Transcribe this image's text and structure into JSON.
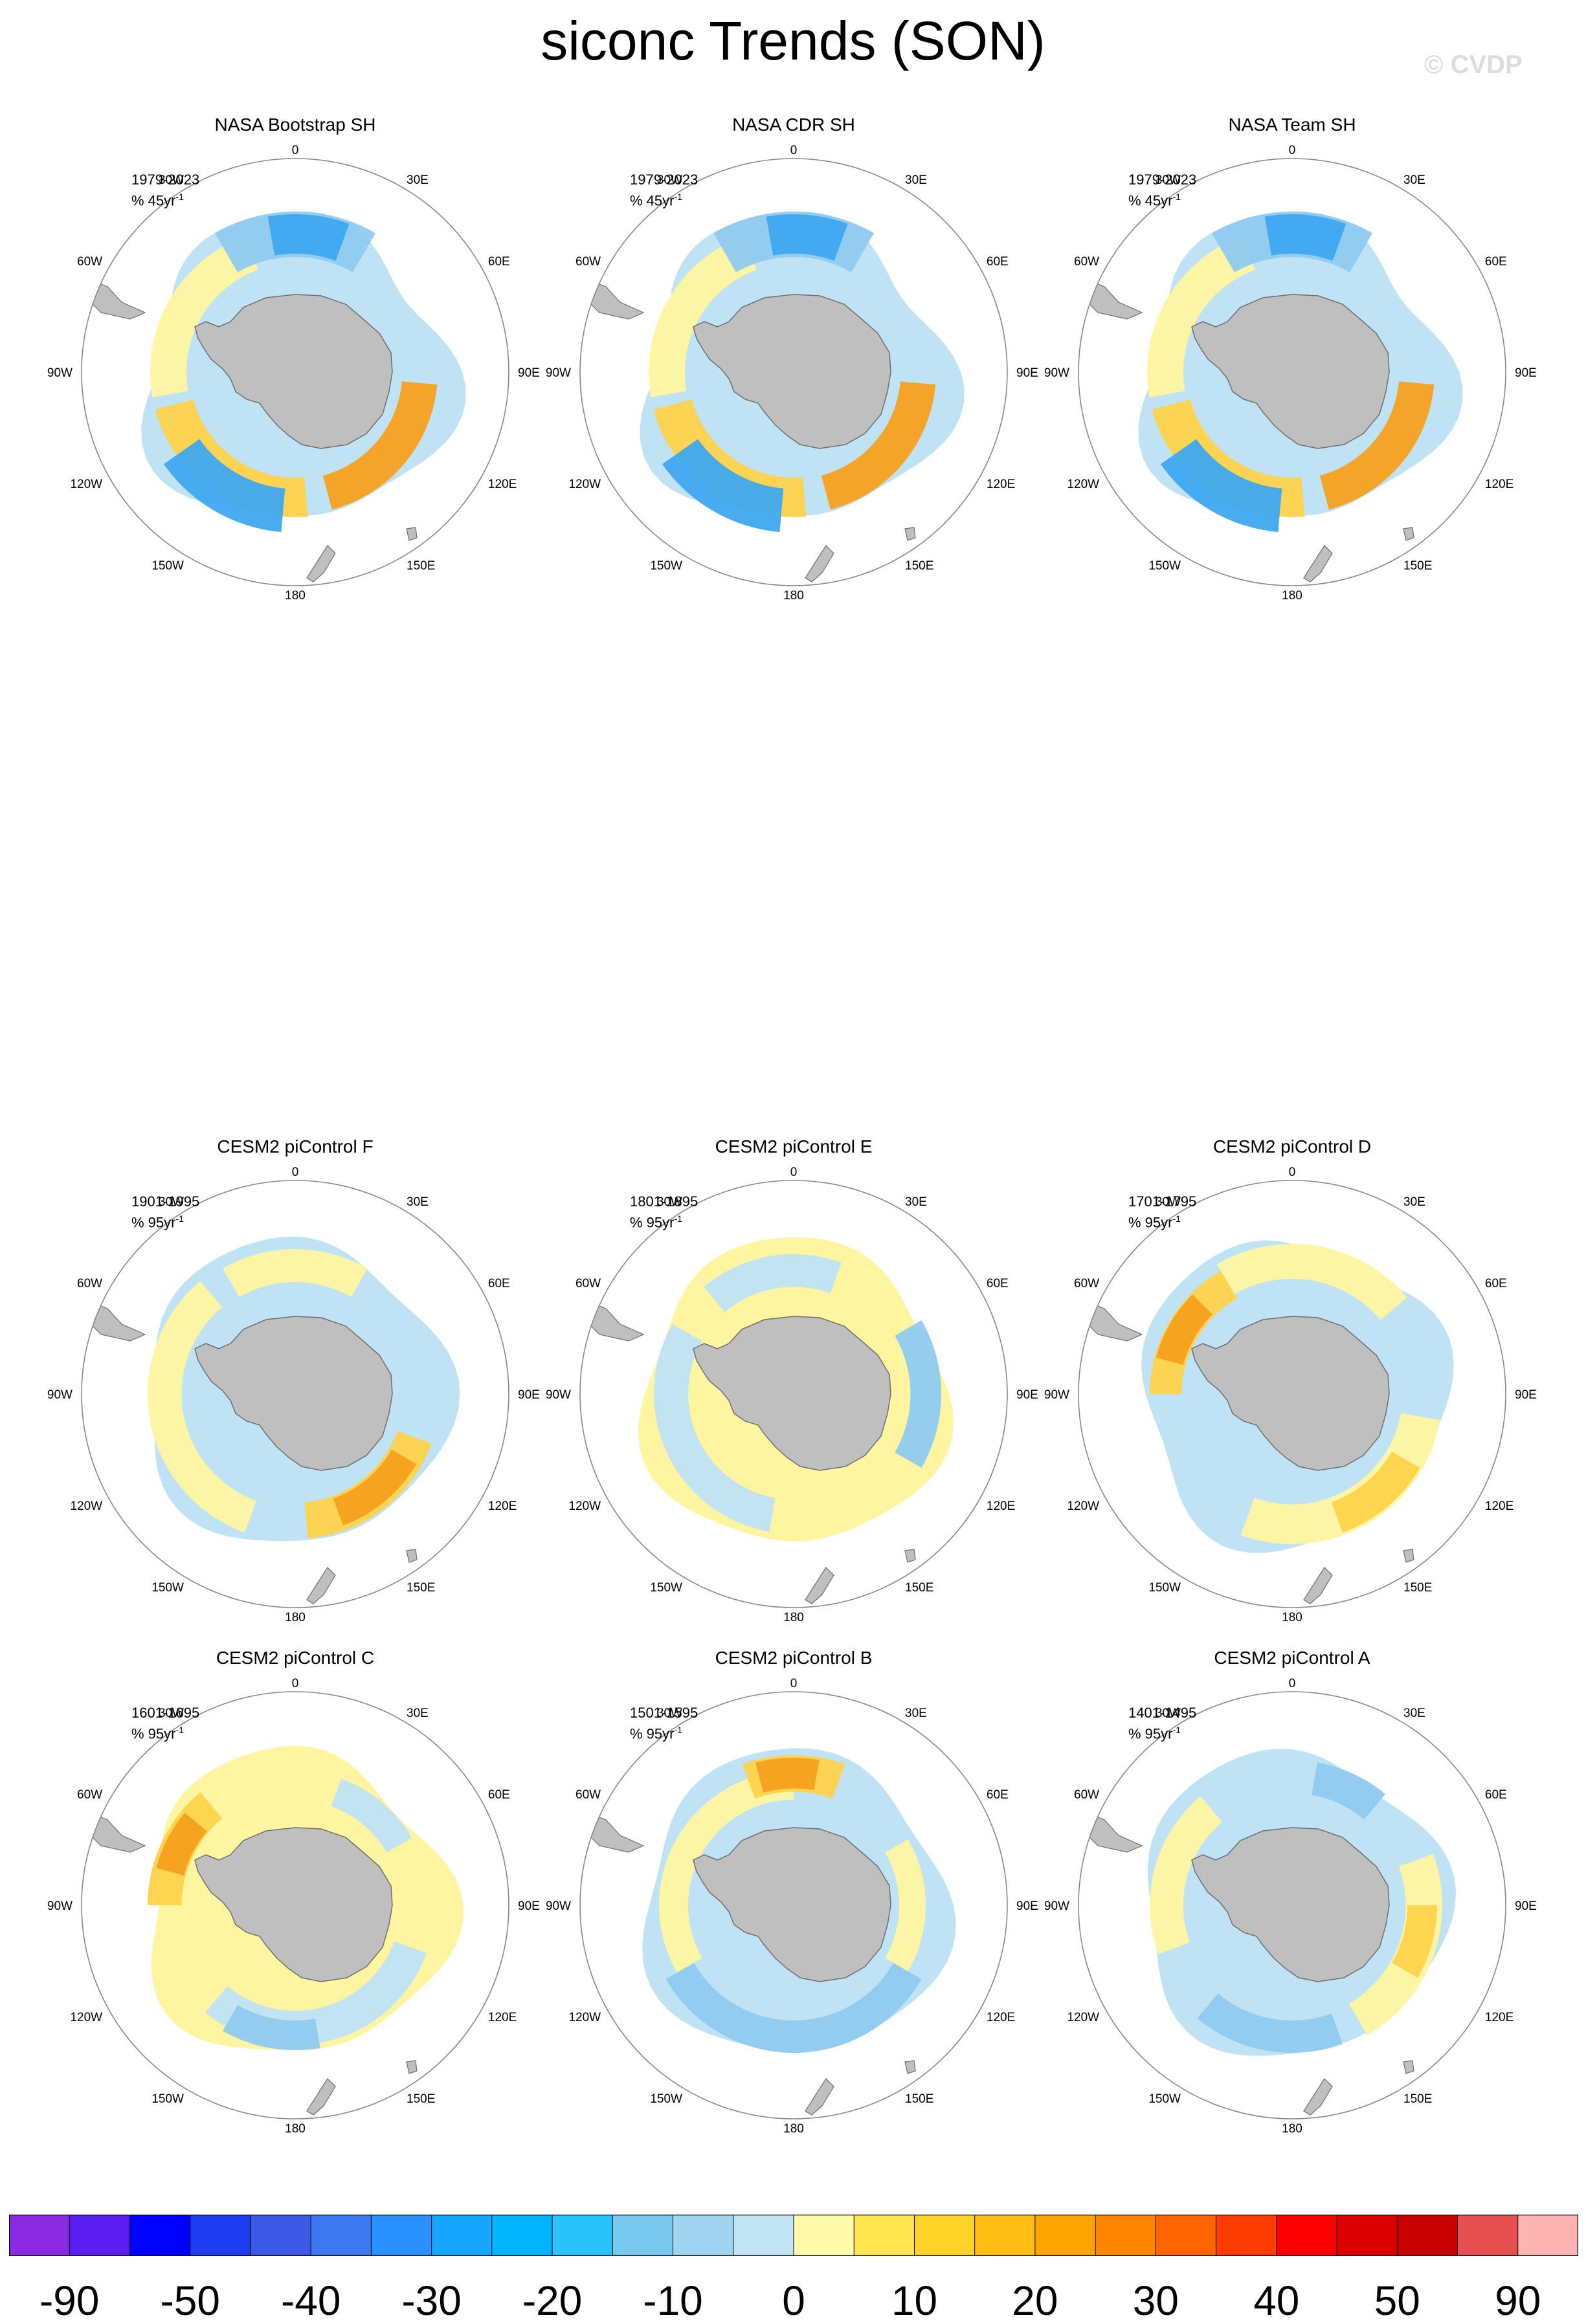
{
  "title": "siconc Trends (SON)",
  "watermark": "© CVDP",
  "longitude_labels": {
    "lon_0": "0",
    "lon_30e": "30E",
    "lon_60e": "60E",
    "lon_90e": "90E",
    "lon_120e": "120E",
    "lon_150e": "150E",
    "lon_180": "180",
    "lon_150w": "150W",
    "lon_120w": "120W",
    "lon_90w": "90W",
    "lon_60w": "60W",
    "lon_30w": "30W"
  },
  "panels": [
    {
      "title": "NASA Bootstrap SH",
      "period": "1979-2023",
      "units_base": "% 45yr",
      "units_exp": "-1",
      "pattern": "obs"
    },
    {
      "title": "NASA CDR SH",
      "period": "1979-2023",
      "units_base": "% 45yr",
      "units_exp": "-1",
      "pattern": "obs"
    },
    {
      "title": "NASA Team SH",
      "period": "1979-2023",
      "units_base": "% 45yr",
      "units_exp": "-1",
      "pattern": "obs"
    },
    {
      "title": "CESM2 piControl F",
      "period": "1901-1995",
      "units_base": "% 95yr",
      "units_exp": "-1",
      "pattern": "model_f"
    },
    {
      "title": "CESM2 piControl E",
      "period": "1801-1895",
      "units_base": "% 95yr",
      "units_exp": "-1",
      "pattern": "model_e"
    },
    {
      "title": "CESM2 piControl D",
      "period": "1701-1795",
      "units_base": "% 95yr",
      "units_exp": "-1",
      "pattern": "model_d"
    },
    {
      "title": "CESM2 piControl C",
      "period": "1601-1695",
      "units_base": "% 95yr",
      "units_exp": "-1",
      "pattern": "model_c"
    },
    {
      "title": "CESM2 piControl B",
      "period": "1501-1595",
      "units_base": "% 95yr",
      "units_exp": "-1",
      "pattern": "model_b"
    },
    {
      "title": "CESM2 piControl A",
      "period": "1401-1495",
      "units_base": "% 95yr",
      "units_exp": "-1",
      "pattern": "model_a"
    }
  ],
  "colorbar": {
    "colors": [
      "#8a2be2",
      "#5a1ef0",
      "#0000ff",
      "#1e3cf0",
      "#3c5ae6",
      "#3c78f0",
      "#2890ff",
      "#14a5ff",
      "#00b4ff",
      "#28c3fa",
      "#78c8f0",
      "#a0d4f0",
      "#c0e4f4",
      "#fffaaa",
      "#ffe650",
      "#ffd228",
      "#ffbe14",
      "#ffa500",
      "#ff8700",
      "#ff6400",
      "#ff3c00",
      "#ff0000",
      "#dc0000",
      "#c80000",
      "#e65050",
      "#ffb4b4"
    ],
    "labels": [
      "-90",
      "-50",
      "-40",
      "-30",
      "-20",
      "-10",
      "0",
      "10",
      "20",
      "30",
      "40",
      "50",
      "90"
    ]
  },
  "palette": {
    "land": "#bfbfbf",
    "neg_light": "#bfe2f5",
    "neg_mid": "#8fcaf0",
    "neg_strong": "#3fa8f0",
    "pos_light": "#fff5a0",
    "pos_mid": "#ffd24a",
    "pos_strong": "#f5a01e",
    "pos_red": "#e05a1e"
  }
}
